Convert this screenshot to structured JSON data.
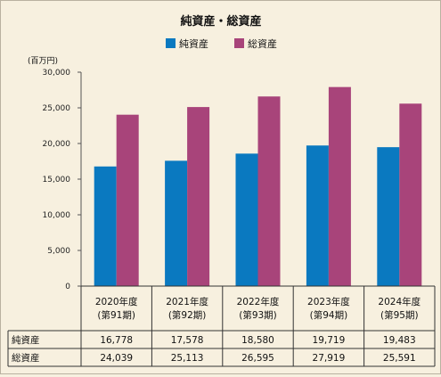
{
  "chart_data": {
    "type": "bar",
    "title": "純資産・総資産",
    "unit": "(百万円)",
    "y_ticks": [
      "30,000",
      "25,000",
      "20,000",
      "15,000",
      "10,000",
      "5,000",
      "0"
    ],
    "ylim": [
      0,
      30000
    ],
    "categories": [
      {
        "year": "2020年度",
        "term": "(第91期)"
      },
      {
        "year": "2021年度",
        "term": "(第92期)"
      },
      {
        "year": "2022年度",
        "term": "(第93期)"
      },
      {
        "year": "2023年度",
        "term": "(第94期)"
      },
      {
        "year": "2024年度",
        "term": "(第95期)"
      }
    ],
    "series": [
      {
        "name": "純資産",
        "color": "#0a79c0",
        "values": [
          16778,
          17578,
          18580,
          19719,
          19483
        ],
        "labels": [
          "16,778",
          "17,578",
          "18,580",
          "19,719",
          "19,483"
        ]
      },
      {
        "name": "総資産",
        "color": "#a8447a",
        "values": [
          24039,
          25113,
          26595,
          27919,
          25591
        ],
        "labels": [
          "24,039",
          "25,113",
          "26,595",
          "27,919",
          "25,591"
        ]
      }
    ],
    "grid": false,
    "legend": "top-center"
  }
}
